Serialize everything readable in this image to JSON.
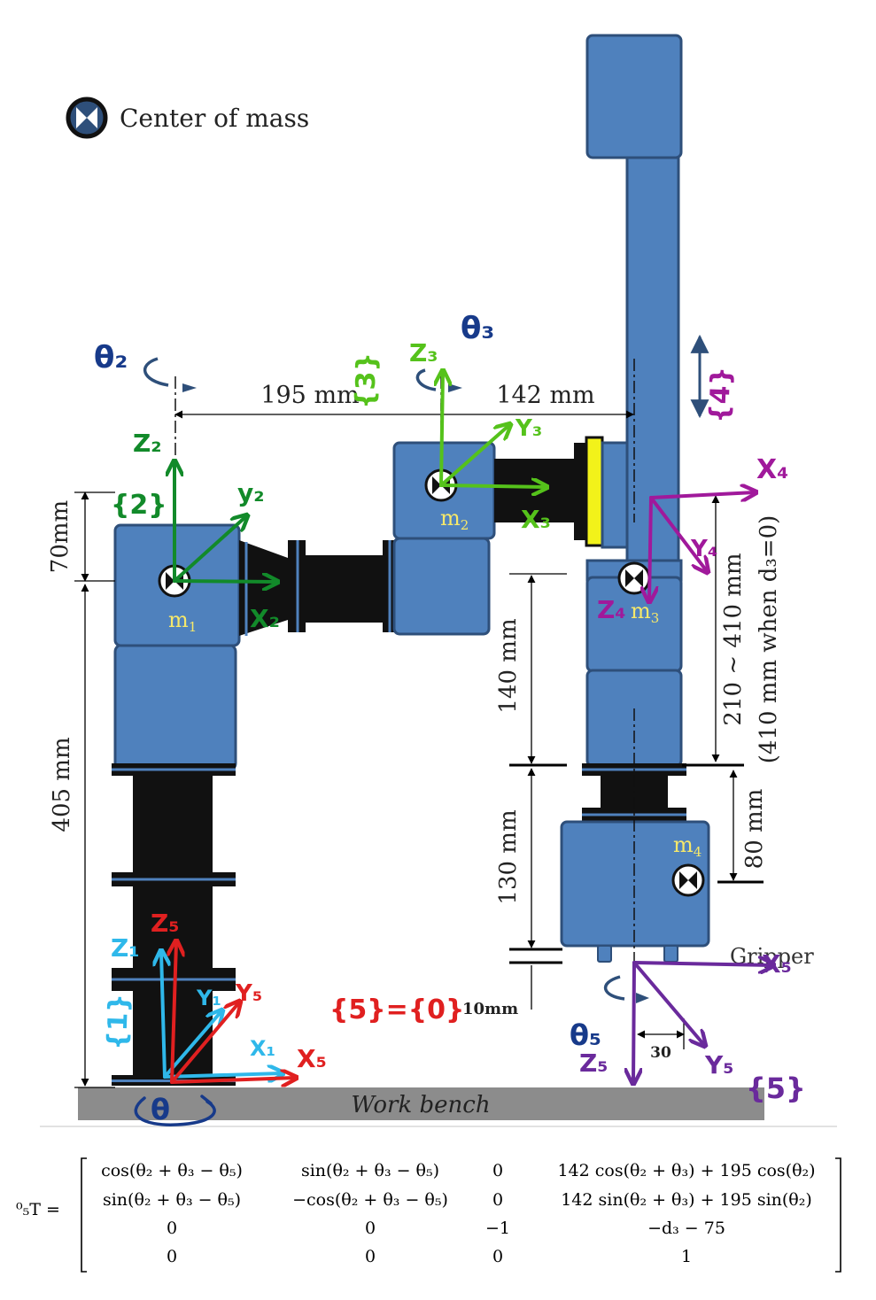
{
  "legend": {
    "label": "Center of mass"
  },
  "colors": {
    "link_blue": "#4f81bd",
    "link_outline": "#2e4f7a",
    "joint_black": "#111111",
    "bench_gray": "#8c8c8c",
    "frame_dark_green": "#128a2a",
    "frame_light_green": "#55c21b",
    "frame_magenta": "#a0199b",
    "frame_purple": "#6a2a9c",
    "frame_red": "#e02020",
    "frame_cyan": "#2fb8ea",
    "angle_navy": "#173a8a",
    "mass_label_yellow": "#f6e86a",
    "flange_yellow": "#f2f21a"
  },
  "masses": {
    "m1": "m",
    "m1_sub": "1",
    "m2": "m",
    "m2_sub": "2",
    "m3": "m",
    "m3_sub": "3",
    "m4": "m",
    "m4_sub": "4"
  },
  "dimensions": {
    "d195": "195 mm",
    "d142": "142 mm",
    "d70": "70mm",
    "d405": "405 mm",
    "d140": "140 mm",
    "d130": "130 mm",
    "d10": "10mm",
    "d80": "80  mm",
    "d210": "210 ~ 410  mm",
    "d410": "(410 mm when d₃=0)",
    "d30": "30"
  },
  "labels": {
    "gripper": "Gripper",
    "bench": "Work bench"
  },
  "annotations": {
    "theta2": "θ₂",
    "theta3": "θ₃",
    "theta5": "θ₅",
    "theta1": "θ",
    "frame2": "{2}",
    "frame3": "{3}",
    "frame4": "{4}",
    "frame1": "{1}",
    "frame5": "{5}",
    "frame50": "{5}={0}",
    "z2": "Z₂",
    "y2": "y₂",
    "x2": "X₂",
    "z3": "Z₃",
    "y3": "Y₃",
    "x3": "X₃",
    "x4": "X₄",
    "y4": "Y₄",
    "z4": "Z₄",
    "z5r": "Z₅",
    "y5r": "Y₅",
    "x5r": "X₅",
    "z1": "Z₁",
    "y1": "Y₁",
    "x1": "X₁",
    "x5": "X₅",
    "y5": "Y₅",
    "z5": "Z₅"
  },
  "equation": {
    "lhs": "⁰₅T =",
    "rows": [
      [
        "cos(θ₂ + θ₃ − θ₅)",
        "sin(θ₂ + θ₃ − θ₅)",
        "0",
        "142 cos(θ₂ + θ₃) + 195 cos(θ₂)"
      ],
      [
        "sin(θ₂ + θ₃ − θ₅)",
        "−cos(θ₂ + θ₃ − θ₅)",
        "0",
        "142 sin(θ₂ + θ₃) + 195 sin(θ₂)"
      ],
      [
        "0",
        "0",
        "−1",
        "−d₃ − 75"
      ],
      [
        "0",
        "0",
        "0",
        "1"
      ]
    ]
  }
}
